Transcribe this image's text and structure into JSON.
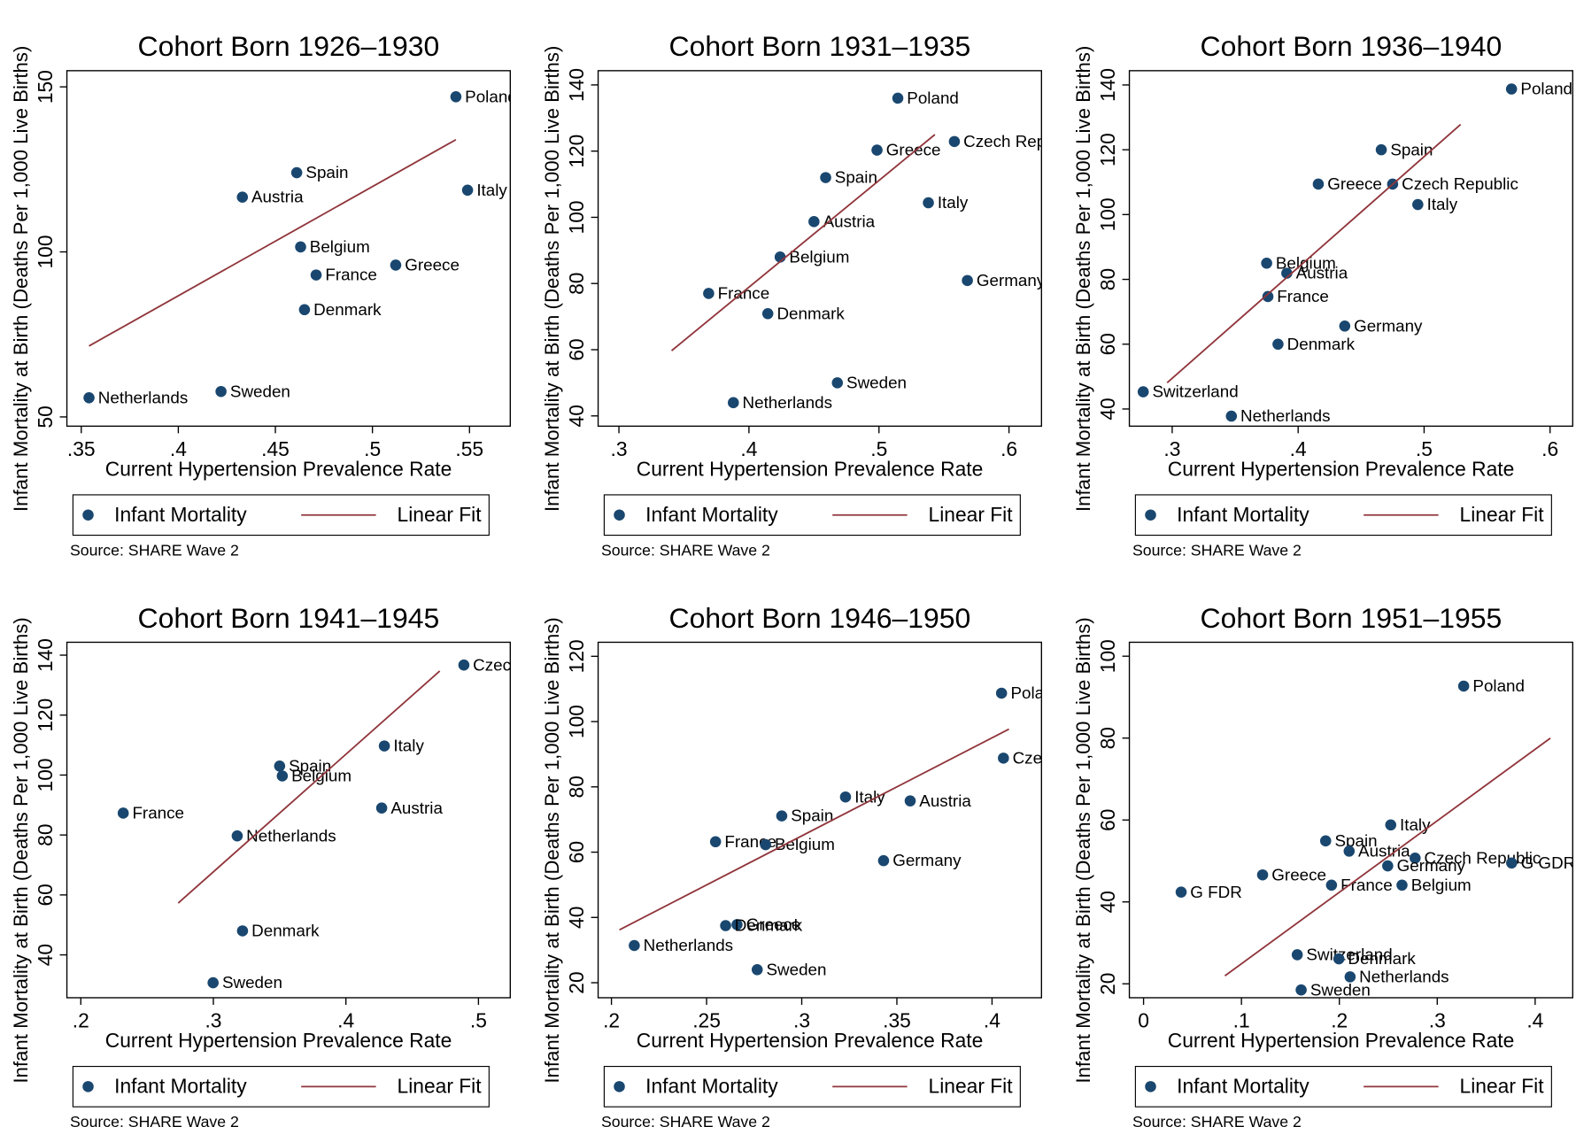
{
  "chart_data": [
    {
      "type": "scatter",
      "title": "Cohort Born 1926–1930",
      "xlabel": "Current Hypertension Prevalence Rate",
      "ylabel": "Infant Mortality at Birth (Deaths Per 1,000 Live Births)",
      "note": "Source: SHARE Wave 2",
      "xlim": [
        0.3426,
        0.571
      ],
      "ylim": [
        47.2,
        154.9
      ],
      "xticks": [
        {
          "value": 0.35,
          "label": ".35"
        },
        {
          "value": 0.4,
          "label": ".4"
        },
        {
          "value": 0.45,
          "label": ".45"
        },
        {
          "value": 0.5,
          "label": ".5"
        },
        {
          "value": 0.55,
          "label": ".55"
        }
      ],
      "yticks": [
        50,
        100,
        150
      ],
      "series": [
        {
          "name": "Infant Mortality",
          "color": "#1a476f",
          "labels": [
            "Poland",
            "Spain",
            "Austria",
            "Italy",
            "Belgium",
            "France",
            "Greece",
            "Denmark",
            "Netherlands",
            "Sweden"
          ],
          "x": [
            0.543,
            0.461,
            0.433,
            0.549,
            0.463,
            0.471,
            0.512,
            0.465,
            0.354,
            0.422
          ],
          "y": [
            147,
            124,
            116.6,
            118.7,
            101.5,
            93,
            96,
            82.5,
            55.8,
            57.7
          ]
        },
        {
          "name": "Linear Fit",
          "type": "line",
          "color": "#90353b",
          "x": [
            0.354,
            0.543
          ],
          "y": [
            71.5,
            134
          ]
        }
      ]
    },
    {
      "type": "scatter",
      "title": "Cohort Born 1931–1935",
      "xlabel": "Current Hypertension Prevalence Rate",
      "ylabel": "Infant Mortality at Birth (Deaths Per 1,000 Live Births)",
      "note": "Source: SHARE Wave 2",
      "xlim": [
        0.284,
        0.625
      ],
      "ylim": [
        36.9,
        144.3
      ],
      "xticks": [
        {
          "value": 0.3,
          "label": ".3"
        },
        {
          "value": 0.4,
          "label": ".4"
        },
        {
          "value": 0.5,
          "label": ".5"
        },
        {
          "value": 0.6,
          "label": ".6"
        }
      ],
      "yticks": [
        40,
        60,
        80,
        100,
        120,
        140
      ],
      "series": [
        {
          "name": "Infant Mortality",
          "color": "#1a476f",
          "labels": [
            "Poland",
            "Czech Republic",
            "Greece",
            "Spain",
            "Italy",
            "Austria",
            "Belgium",
            "Germany",
            "France",
            "Denmark",
            "Sweden",
            "Netherlands"
          ],
          "x": [
            0.5145,
            0.558,
            0.4985,
            0.459,
            0.538,
            0.45,
            0.424,
            0.568,
            0.369,
            0.4145,
            0.468,
            0.388
          ],
          "y": [
            136,
            122.9,
            120.3,
            112,
            104.4,
            98.7,
            88,
            80.9,
            77,
            70.9,
            50,
            44
          ]
        },
        {
          "name": "Linear Fit",
          "type": "line",
          "color": "#90353b",
          "x": [
            0.3405,
            0.543
          ],
          "y": [
            59.7,
            125
          ]
        }
      ]
    },
    {
      "type": "scatter",
      "title": "Cohort Born 1936–1940",
      "xlabel": "Current Hypertension Prevalence Rate",
      "ylabel": "Infant Mortality at Birth (Deaths Per 1,000 Live Births)",
      "note": "Source: SHARE Wave 2",
      "xlim": [
        0.266,
        0.618
      ],
      "ylim": [
        34.7,
        144.4
      ],
      "xticks": [
        {
          "value": 0.3,
          "label": ".3"
        },
        {
          "value": 0.4,
          "label": ".4"
        },
        {
          "value": 0.5,
          "label": ".5"
        },
        {
          "value": 0.6,
          "label": ".6"
        }
      ],
      "yticks": [
        40,
        60,
        80,
        100,
        120,
        140
      ],
      "series": [
        {
          "name": "Infant Mortality",
          "color": "#1a476f",
          "labels": [
            "Poland",
            "Spain",
            "Greece",
            "Czech Republic",
            "Italy",
            "Belgium",
            "Austria",
            "France",
            "Germany",
            "Denmark",
            "Switzerland",
            "Netherlands"
          ],
          "x": [
            0.5694,
            0.466,
            0.416,
            0.475,
            0.495,
            0.375,
            0.391,
            0.376,
            0.437,
            0.384,
            0.277,
            0.347
          ],
          "y": [
            138.75,
            120,
            109.4,
            109.4,
            103.1,
            85,
            81.9,
            74.7,
            65.6,
            60,
            45.3,
            37.8
          ]
        },
        {
          "name": "Linear Fit",
          "type": "line",
          "color": "#90353b",
          "x": [
            0.296,
            0.529
          ],
          "y": [
            48.1,
            127.8
          ]
        }
      ]
    },
    {
      "type": "scatter",
      "title": "Cohort Born 1941–1945",
      "xlabel": "Current Hypertension Prevalence Rate",
      "ylabel": "Infant Mortality at Birth (Deaths Per 1,000 Live Births)",
      "note": "Source: SHARE Wave 2",
      "xlim": [
        0.1895,
        0.524
      ],
      "ylim": [
        25.7,
        144.3
      ],
      "xticks": [
        {
          "value": 0.2,
          "label": ".2"
        },
        {
          "value": 0.3,
          "label": ".3"
        },
        {
          "value": 0.4,
          "label": ".4"
        },
        {
          "value": 0.5,
          "label": ".5"
        }
      ],
      "yticks": [
        40,
        60,
        80,
        100,
        120,
        140
      ],
      "series": [
        {
          "name": "Infant Mortality",
          "color": "#1a476f",
          "labels": [
            "Czech Republic",
            "Italy",
            "Spain",
            "Belgium",
            "Austria",
            "France",
            "Netherlands",
            "Denmark",
            "Sweden"
          ],
          "x": [
            0.489,
            0.429,
            0.35,
            0.352,
            0.427,
            0.232,
            0.318,
            0.322,
            0.2998
          ],
          "y": [
            136.7,
            109.7,
            103,
            99.7,
            89,
            87.3,
            79.7,
            48,
            30.7
          ]
        },
        {
          "name": "Linear Fit",
          "type": "line",
          "color": "#90353b",
          "x": [
            0.2735,
            0.4708
          ],
          "y": [
            57.3,
            134.7
          ]
        }
      ]
    },
    {
      "type": "scatter",
      "title": "Cohort Born 1946–1950",
      "xlabel": "Current Hypertension Prevalence Rate",
      "ylabel": "Infant Mortality at Birth (Deaths Per 1,000 Live Births)",
      "note": "Source: SHARE Wave 2",
      "xlim": [
        0.193,
        0.426
      ],
      "ylim": [
        15.4,
        124.3
      ],
      "xticks": [
        {
          "value": 0.2,
          "label": ".2"
        },
        {
          "value": 0.25,
          "label": ".25"
        },
        {
          "value": 0.3,
          "label": ".3"
        },
        {
          "value": 0.35,
          "label": ".35"
        },
        {
          "value": 0.4,
          "label": ".4"
        }
      ],
      "yticks": [
        20,
        40,
        60,
        80,
        100,
        120
      ],
      "series": [
        {
          "name": "Infant Mortality",
          "color": "#1a476f",
          "labels": [
            "Poland",
            "Czech Republic",
            "Italy",
            "Austria",
            "Spain",
            "France",
            "Belgium",
            "Germany",
            "Greece",
            "Denmark",
            "Netherlands",
            "Sweden"
          ],
          "x": [
            0.405,
            0.406,
            0.323,
            0.357,
            0.2895,
            0.2547,
            0.281,
            0.343,
            0.266,
            0.26,
            0.212,
            0.2766
          ],
          "y": [
            108.7,
            88.8,
            76.9,
            75.7,
            71.1,
            63.2,
            62.3,
            57.4,
            37.8,
            37.5,
            31.4,
            24
          ]
        },
        {
          "name": "Linear Fit",
          "type": "line",
          "color": "#90353b",
          "x": [
            0.2042,
            0.4089
          ],
          "y": [
            36.2,
            97.7
          ]
        }
      ]
    },
    {
      "type": "scatter",
      "title": "Cohort Born 1951–1955",
      "xlabel": "Current Hypertension Prevalence Rate",
      "ylabel": "Infant Mortality at Birth (Deaths Per 1,000 Live Births)",
      "note": "Source: SHARE Wave 2",
      "xlim": [
        -0.0145,
        0.4384
      ],
      "ylim": [
        16.6,
        103.4
      ],
      "xticks": [
        0,
        {
          "value": 0.1,
          "label": ".1"
        },
        {
          "value": 0.2,
          "label": ".2"
        },
        {
          "value": 0.3,
          "label": ".3"
        },
        {
          "value": 0.4,
          "label": ".4"
        }
      ],
      "yticks": [
        20,
        40,
        60,
        80,
        100
      ],
      "series": [
        {
          "name": "Infant Mortality",
          "color": "#1a476f",
          "labels": [
            "Poland",
            "Italy",
            "Spain",
            "Austria",
            "Czech Republic",
            "G GDR",
            "Germany",
            "Greece",
            "France",
            "Belgium",
            "G FDR",
            "Switzerland",
            "Denmark",
            "Netherlands",
            "Sweden"
          ],
          "x": [
            0.327,
            0.2525,
            0.186,
            0.21,
            0.2774,
            0.376,
            0.2494,
            0.1216,
            0.192,
            0.264,
            0.0384,
            0.157,
            0.1995,
            0.211,
            0.161
          ],
          "y": [
            92.7,
            58.8,
            54.9,
            52.4,
            50.7,
            49.5,
            48.8,
            46.6,
            44.1,
            44.1,
            42.4,
            27.1,
            26.1,
            21.7,
            18.5
          ]
        },
        {
          "name": "Linear Fit",
          "type": "line",
          "color": "#90353b",
          "x": [
            0.0831,
            0.4156
          ],
          "y": [
            21.95,
            80
          ]
        }
      ]
    }
  ]
}
